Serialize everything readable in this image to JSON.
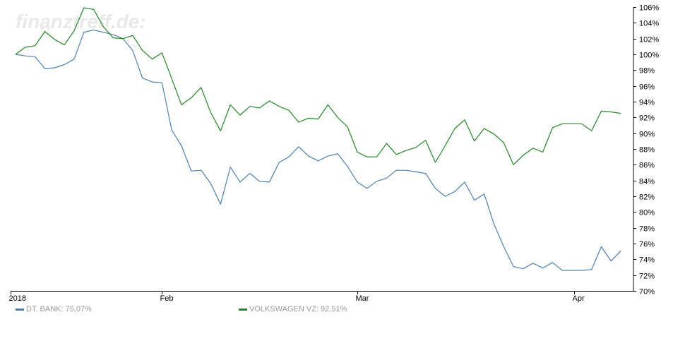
{
  "watermark": "finanztreff.de:",
  "legend": [
    {
      "label": "DT. BANK: 75,07%",
      "color": "#4a80b8"
    },
    {
      "label": "VOLKSWAGEN VZ: 92,51%",
      "color": "#1f8a1f"
    }
  ],
  "chart_data": {
    "type": "line",
    "title": "",
    "xlabel": "",
    "ylabel": "",
    "ylim": [
      70,
      106
    ],
    "y_ticks": [
      106,
      104,
      102,
      100,
      98,
      96,
      94,
      92,
      90,
      88,
      86,
      84,
      82,
      80,
      78,
      76,
      74,
      72,
      70
    ],
    "y_tick_labels": [
      "106%",
      "104%",
      "102%",
      "100%",
      "98%",
      "96%",
      "94%",
      "92%",
      "90%",
      "88%",
      "86%",
      "84%",
      "82%",
      "80%",
      "78%",
      "76%",
      "74%",
      "72%",
      "70%"
    ],
    "y_axis_side": "right",
    "grid": false,
    "legend_position": "bottom",
    "x_index_range": [
      0,
      63
    ],
    "x_ticks": [
      {
        "label": "2018",
        "index": -0.5
      },
      {
        "label": "Feb",
        "index": 15
      },
      {
        "label": "Mar",
        "index": 35
      },
      {
        "label": "Apr",
        "index": 57.2
      }
    ],
    "series": [
      {
        "name": "DT. BANK: 75,07%",
        "color": "#4a80b8",
        "values": [
          100.0,
          99.8,
          99.7,
          98.2,
          98.3,
          98.7,
          99.4,
          102.8,
          103.1,
          102.8,
          102.5,
          102.0,
          100.5,
          97.0,
          96.5,
          96.4,
          90.4,
          88.4,
          85.2,
          85.3,
          83.6,
          81.0,
          85.7,
          83.8,
          84.9,
          83.9,
          83.8,
          86.3,
          87.0,
          88.3,
          87.1,
          86.5,
          87.1,
          87.4,
          85.8,
          83.8,
          83.0,
          83.9,
          84.3,
          85.3,
          85.3,
          85.1,
          84.9,
          83.0,
          82.0,
          82.6,
          83.8,
          81.5,
          82.3,
          78.5,
          75.6,
          73.1,
          72.8,
          73.5,
          72.9,
          73.6,
          72.6,
          72.6,
          72.6,
          72.7,
          75.6,
          73.8,
          75.07
        ]
      },
      {
        "name": "VOLKSWAGEN VZ: 92,51%",
        "color": "#1f8a1f",
        "values": [
          100.0,
          100.9,
          101.1,
          102.9,
          101.9,
          101.2,
          103.0,
          105.9,
          105.7,
          103.5,
          102.1,
          102.0,
          102.4,
          100.5,
          99.4,
          100.2,
          96.9,
          93.6,
          94.5,
          95.8,
          92.6,
          90.3,
          93.6,
          92.3,
          93.4,
          93.2,
          94.1,
          93.4,
          92.9,
          91.4,
          91.9,
          91.8,
          93.6,
          92.0,
          90.8,
          87.6,
          87.0,
          87.0,
          88.7,
          87.3,
          87.8,
          88.2,
          89.1,
          86.3,
          88.4,
          90.6,
          91.7,
          89.0,
          90.6,
          89.9,
          88.8,
          86.0,
          87.2,
          88.1,
          87.6,
          90.7,
          91.2,
          91.2,
          91.2,
          90.3,
          92.8,
          92.7,
          92.51
        ]
      }
    ]
  }
}
